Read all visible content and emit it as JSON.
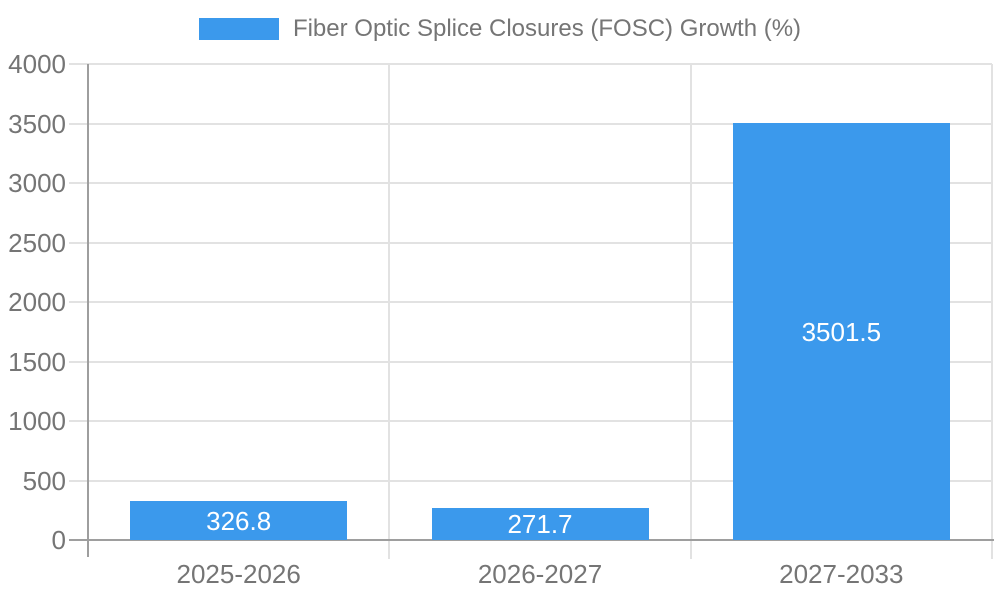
{
  "colors": {
    "bar": "#3B99EC",
    "grid": "#E2E2E2",
    "axis": "#9E9E9E",
    "text": "#757575",
    "bar_label": "#FFFFFF",
    "background": "#FFFFFF"
  },
  "chart_data": {
    "type": "bar",
    "title": "",
    "legend": {
      "position": "top",
      "label": "Fiber Optic Splice Closures (FOSC) Growth (%)"
    },
    "categories": [
      "2025-2026",
      "2026-2027",
      "2027-2033"
    ],
    "series": [
      {
        "name": "Fiber Optic Splice Closures (FOSC) Growth (%)",
        "values": [
          326.8,
          271.7,
          3501.5
        ]
      }
    ],
    "value_labels": [
      "326.8",
      "271.7",
      "3501.5"
    ],
    "xlabel": "",
    "ylabel": "",
    "ylim": [
      0,
      4000
    ],
    "ytick_step": 500,
    "yticks": [
      0,
      500,
      1000,
      1500,
      2000,
      2500,
      3000,
      3500,
      4000
    ],
    "grid": "on",
    "value_label_position": "inside-center"
  }
}
